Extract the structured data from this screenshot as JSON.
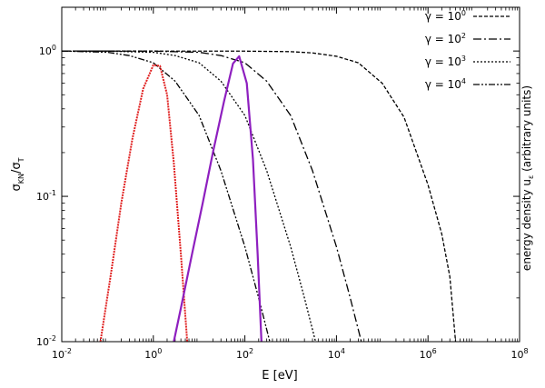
{
  "chart_data": {
    "type": "line",
    "xlabel": "E [eV]",
    "ylabel": "σKN/σT",
    "ylabel_right": "energy density uε (arbitrary units)",
    "x_scale": "log",
    "y_scale": "log",
    "xlim": [
      0.01,
      100000000
    ],
    "ylim": [
      0.01,
      2
    ],
    "x_ticks": [
      {
        "value": 0.01,
        "base": "10",
        "exp": "-2"
      },
      {
        "value": 1,
        "base": "10",
        "exp": "0"
      },
      {
        "value": 100,
        "base": "10",
        "exp": "2"
      },
      {
        "value": 10000,
        "base": "10",
        "exp": "4"
      },
      {
        "value": 1000000,
        "base": "10",
        "exp": "6"
      },
      {
        "value": 100000000,
        "base": "10",
        "exp": "8"
      }
    ],
    "y_ticks": [
      {
        "value": 0.01,
        "base": "10",
        "exp": "-2"
      },
      {
        "value": 0.1,
        "base": "10",
        "exp": "-1"
      },
      {
        "value": 1,
        "base": "10",
        "exp": "0"
      }
    ],
    "legend_position": "top-right",
    "series": [
      {
        "name": "γ = 10^0",
        "legend_base": "γ = 10",
        "legend_exp": "0",
        "dash": "4,2",
        "color": "#000000",
        "x": [
          0.01,
          100,
          1000,
          3000,
          10000,
          30000,
          100000,
          300000,
          1000000,
          2000000,
          3000000,
          4000000
        ],
        "y": [
          1.0,
          0.998,
          0.99,
          0.97,
          0.92,
          0.83,
          0.6,
          0.35,
          0.12,
          0.055,
          0.028,
          0.01
        ]
      },
      {
        "name": "γ = 10^2",
        "legend_base": "γ = 10",
        "legend_exp": "2",
        "dash": "9,3,2,3",
        "color": "#000000",
        "x": [
          0.01,
          1,
          10,
          30,
          100,
          300,
          1000,
          3000,
          10000,
          20000,
          35000
        ],
        "y": [
          1.0,
          0.998,
          0.98,
          0.93,
          0.83,
          0.62,
          0.36,
          0.15,
          0.045,
          0.02,
          0.01
        ]
      },
      {
        "name": "γ = 10^3",
        "legend_base": "γ = 10",
        "legend_exp": "3",
        "dash": "2,2",
        "color": "#000000",
        "x": [
          0.01,
          0.1,
          1,
          3,
          10,
          30,
          100,
          300,
          1000,
          2000,
          3500
        ],
        "y": [
          1.0,
          0.998,
          0.98,
          0.93,
          0.83,
          0.62,
          0.36,
          0.15,
          0.045,
          0.02,
          0.01
        ]
      },
      {
        "name": "γ = 10^4",
        "legend_base": "γ = 10",
        "legend_exp": "4",
        "dash": "7,2,2,2,2,2",
        "color": "#000000",
        "x": [
          0.01,
          0.1,
          0.3,
          1,
          3,
          10,
          30,
          100,
          200,
          350
        ],
        "y": [
          1.0,
          0.98,
          0.93,
          0.83,
          0.62,
          0.36,
          0.15,
          0.045,
          0.02,
          0.01
        ]
      },
      {
        "name": "",
        "dash": "2,1",
        "color": "#e02020",
        "x": [
          0.07,
          0.12,
          0.2,
          0.35,
          0.6,
          1.0,
          1.4,
          2.0,
          2.8,
          4.0,
          5.5
        ],
        "y": [
          0.01,
          0.03,
          0.09,
          0.25,
          0.55,
          0.8,
          0.79,
          0.5,
          0.17,
          0.04,
          0.01
        ]
      },
      {
        "name": "",
        "dash": "",
        "color": "#8e1fbf",
        "x": [
          2.8,
          4,
          7,
          12,
          20,
          35,
          55,
          75,
          110,
          150,
          190,
          230
        ],
        "y": [
          0.01,
          0.017,
          0.04,
          0.09,
          0.2,
          0.45,
          0.82,
          0.92,
          0.6,
          0.18,
          0.04,
          0.01
        ]
      }
    ]
  }
}
